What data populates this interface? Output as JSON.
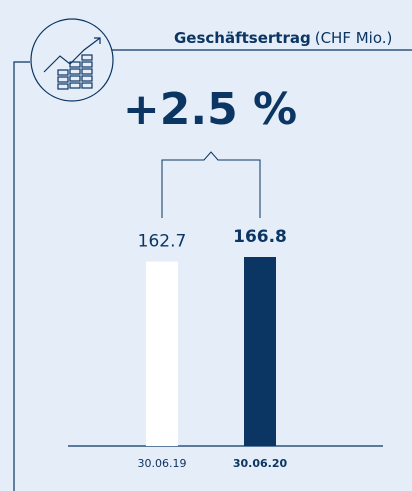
{
  "chart_data": {
    "type": "bar",
    "title": "Geschäftsertrag",
    "subtitle": "(CHF Mio.)",
    "annotation": "+2.5 %",
    "categories": [
      "30.06.19",
      "30.06.20"
    ],
    "values": [
      162.7,
      166.8
    ],
    "colors": [
      "#ffffff",
      "#0b3563"
    ]
  }
}
